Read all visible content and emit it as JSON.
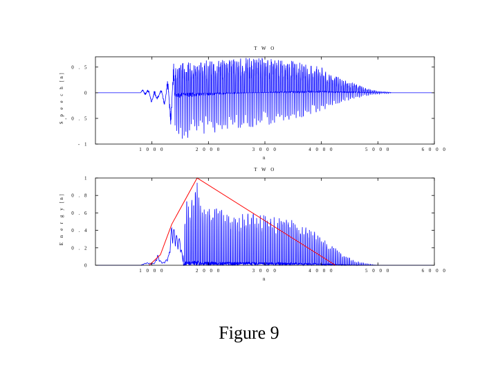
{
  "caption": "Figure 9",
  "chart_data": [
    {
      "type": "line",
      "title": "T W O",
      "xlabel": "n",
      "ylabel": "S p e e c h [n]",
      "xlim": [
        0,
        6000
      ],
      "ylim": [
        -1,
        0.7
      ],
      "xticks": [
        1000,
        2000,
        3000,
        4000,
        5000,
        6000
      ],
      "xtick_labels": [
        "1 0 0 0",
        "2 0 0 0",
        "3 0 0 0",
        "4 0 0 0",
        "5 0 0 0",
        "6 0 0 0"
      ],
      "yticks": [
        -1,
        -0.5,
        0,
        0.5
      ],
      "ytick_labels": [
        "- 1",
        "- 0 . 5",
        "0",
        "0 . 5"
      ],
      "series": [
        {
          "color": "#0000ff",
          "style": "oscillating waveform",
          "x": [
            0,
            800,
            850,
            900,
            950,
            1000,
            1050,
            1100,
            1150,
            1200,
            1250,
            1300,
            1350,
            1400,
            1450,
            1500,
            1550,
            1600,
            1700,
            1800,
            1900,
            2000,
            2200,
            2400,
            2600,
            2800,
            3000,
            3200,
            3400,
            3600,
            3800,
            4000,
            4200,
            4400,
            4600,
            4800,
            5000,
            5200,
            5250,
            6000
          ],
          "upper": [
            0,
            0,
            0.1,
            0.08,
            0.06,
            0.03,
            0.05,
            0.02,
            0.04,
            0.1,
            0.15,
            0.35,
            0.67,
            0.58,
            0.55,
            0.6,
            0.62,
            0.58,
            0.6,
            0.6,
            0.64,
            0.62,
            0.64,
            0.66,
            0.68,
            0.69,
            0.68,
            0.65,
            0.64,
            0.6,
            0.55,
            0.5,
            0.35,
            0.25,
            0.18,
            0.08,
            0.03,
            0.01,
            0,
            0
          ],
          "lower": [
            0,
            0,
            -0.02,
            -0.06,
            -0.12,
            -0.2,
            -0.28,
            -0.12,
            -0.08,
            -0.2,
            -0.3,
            -0.5,
            -0.75,
            -0.8,
            -0.82,
            -0.95,
            -0.92,
            -0.9,
            -0.88,
            -0.85,
            -0.82,
            -0.8,
            -0.76,
            -0.72,
            -0.7,
            -0.68,
            -0.66,
            -0.6,
            -0.55,
            -0.5,
            -0.42,
            -0.35,
            -0.26,
            -0.18,
            -0.12,
            -0.06,
            -0.03,
            -0.01,
            0,
            0
          ]
        }
      ]
    },
    {
      "type": "line",
      "title": "T W O",
      "xlabel": "n",
      "ylabel": "E n e r g y [n]",
      "xlim": [
        0,
        6000
      ],
      "ylim": [
        0,
        1
      ],
      "xticks": [
        1000,
        2000,
        3000,
        4000,
        5000,
        6000
      ],
      "xtick_labels": [
        "1 0 0 0",
        "2 0 0 0",
        "3 0 0 0",
        "4 0 0 0",
        "5 0 0 0",
        "6 0 0 0"
      ],
      "yticks": [
        0,
        0.2,
        0.4,
        0.6,
        0.8,
        1
      ],
      "ytick_labels": [
        "0",
        "0 . 2",
        "0 . 4",
        "0 . 6",
        "0 . 8",
        "1"
      ],
      "series": [
        {
          "color": "#0000ff",
          "style": "energy impulses",
          "x": [
            0,
            800,
            900,
            1000,
            1050,
            1100,
            1150,
            1200,
            1250,
            1300,
            1350,
            1400,
            1450,
            1500,
            1550,
            1600,
            1700,
            1800,
            1900,
            2000,
            2200,
            2400,
            2600,
            2800,
            3000,
            3200,
            3400,
            3600,
            3800,
            4000,
            4200,
            4400,
            4600,
            4800,
            5000,
            6000
          ],
          "peak": [
            0,
            0,
            0.03,
            0.02,
            0.03,
            0.12,
            0.05,
            0.03,
            0.06,
            0.12,
            0.45,
            0.4,
            0.32,
            0.3,
            0.05,
            0.75,
            0.8,
            0.95,
            0.75,
            0.65,
            0.65,
            0.62,
            0.6,
            0.6,
            0.58,
            0.56,
            0.54,
            0.48,
            0.42,
            0.33,
            0.22,
            0.12,
            0.05,
            0.02,
            0,
            0
          ]
        },
        {
          "color": "#ff0000",
          "style": "piecewise envelope",
          "x": [
            950,
            1150,
            1350,
            1800,
            4250
          ],
          "y": [
            0,
            0.12,
            0.47,
            1,
            0
          ]
        }
      ]
    }
  ]
}
